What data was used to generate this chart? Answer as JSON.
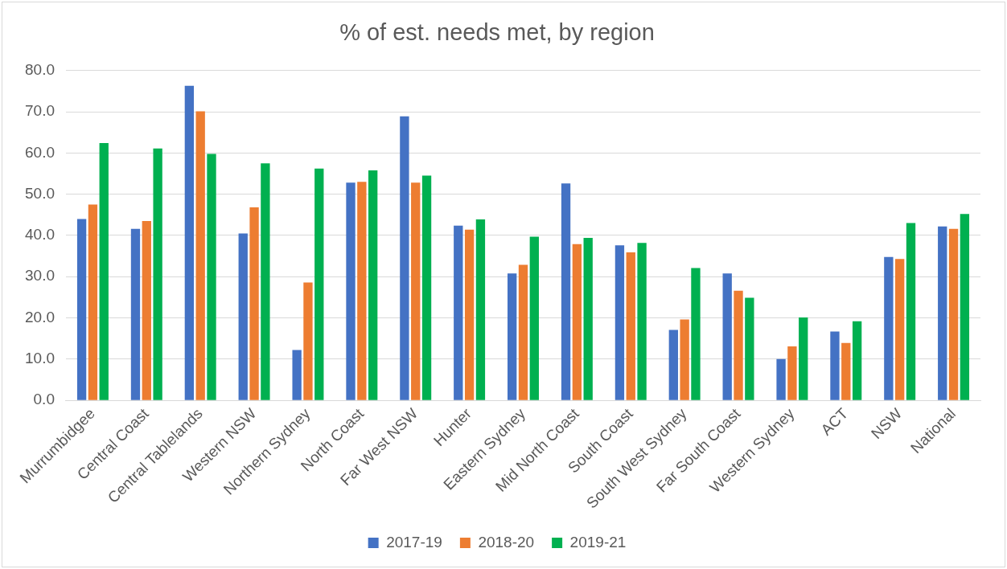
{
  "chart_data": {
    "type": "bar",
    "title": "% of est. needs met, by region",
    "categories": [
      "Murrumbidgee",
      "Central Coast",
      "Central Tablelands",
      "Western NSW",
      "Northern Sydney",
      "North Coast",
      "Far West NSW",
      "Hunter",
      "Eastern Sydney",
      "Mid North Coast",
      "South Coast",
      "South West Sydney",
      "Far South Coast",
      "Western Sydney",
      "ACT",
      "NSW",
      "National"
    ],
    "series": [
      {
        "name": "2017-19",
        "color": "#4472c4",
        "values": [
          44.0,
          41.6,
          76.3,
          40.5,
          12.2,
          52.8,
          68.9,
          42.4,
          30.8,
          52.6,
          37.6,
          17.1,
          30.8,
          10.0,
          16.7,
          34.8,
          42.2
        ]
      },
      {
        "name": "2018-20",
        "color": "#ed7d31",
        "values": [
          47.5,
          43.5,
          70.1,
          46.8,
          28.6,
          53.0,
          52.8,
          41.4,
          32.9,
          37.9,
          35.9,
          19.6,
          26.6,
          13.1,
          13.9,
          34.3,
          41.6
        ]
      },
      {
        "name": "2019-21",
        "color": "#00b050",
        "values": [
          62.4,
          61.1,
          59.8,
          57.5,
          56.2,
          55.8,
          54.5,
          43.9,
          39.7,
          39.4,
          38.2,
          32.1,
          24.9,
          20.1,
          19.2,
          43.0,
          45.2
        ]
      }
    ],
    "ylim": [
      0,
      80
    ],
    "yticks": [
      {
        "value": 0,
        "label": "0.0"
      },
      {
        "value": 10,
        "label": "10.0"
      },
      {
        "value": 20,
        "label": "20.0"
      },
      {
        "value": 30,
        "label": "30.0"
      },
      {
        "value": 40,
        "label": "40.0"
      },
      {
        "value": 50,
        "label": "50.0"
      },
      {
        "value": 60,
        "label": "60.0"
      },
      {
        "value": 70,
        "label": "70.0"
      },
      {
        "value": 80,
        "label": "80.0"
      }
    ],
    "grid": "y",
    "legend": "bottom"
  }
}
